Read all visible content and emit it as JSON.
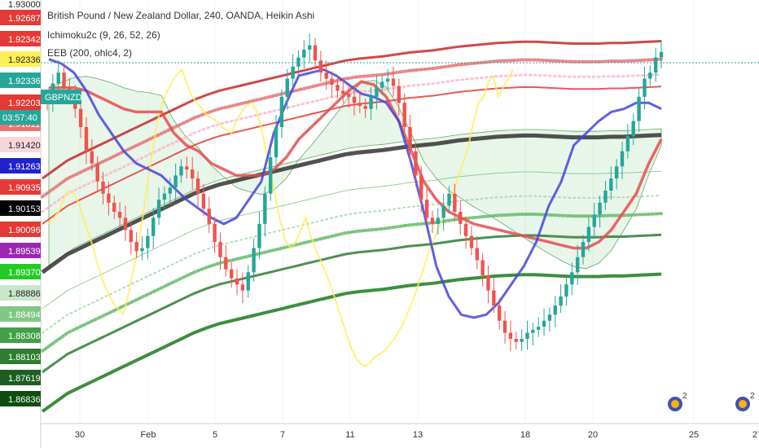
{
  "header": {
    "title": "British Pound / New Zealand Dollar, 240, OANDA, Heikin Ashi",
    "indicator1": "Ichimoku2c (9, 26, 52, 26)",
    "indicator2": "EEB (200, ohlc4, 2)"
  },
  "symbol_badge": "GBPNZD",
  "countdown": "03:57:40",
  "colors": {
    "up": "#26a69a",
    "down": "#ef5350",
    "tenkan": "#4444dd",
    "kijun": "#e84c4c",
    "chikou": "#ffee58",
    "cloud": "#a5d6a7",
    "basis": "#333333"
  },
  "chart_data": {
    "type": "candlestick",
    "x_ticks": [
      "30",
      "Feb",
      "5",
      "7",
      "11",
      "13",
      "18",
      "20",
      "25",
      "27"
    ],
    "price_labels": [
      {
        "value": "1.93000",
        "bg": "#ffffff",
        "fg": "#333333"
      },
      {
        "value": "1.92687",
        "bg": "#e53935",
        "fg": "#ffffff"
      },
      {
        "value": "1.92342",
        "bg": "#e53935",
        "fg": "#ffffff"
      },
      {
        "value": "1.92336",
        "bg": "#ffee58",
        "fg": "#222222"
      },
      {
        "value": "1.92336",
        "bg": "#26a69a",
        "fg": "#ffffff"
      },
      {
        "value": "1.92203",
        "bg": "#e53935",
        "fg": "#ffffff"
      },
      {
        "value": "1.91811",
        "bg": "#e57373",
        "fg": "#ffffff"
      },
      {
        "value": "1.91420",
        "bg": "#f8d7da",
        "fg": "#222222"
      },
      {
        "value": "1.91263",
        "bg": "#2222cc",
        "fg": "#ffffff"
      },
      {
        "value": "1.90935",
        "bg": "#e53935",
        "fg": "#ffffff"
      },
      {
        "value": "1.90153",
        "bg": "#000000",
        "fg": "#ffffff"
      },
      {
        "value": "1.90096",
        "bg": "#e53935",
        "fg": "#ffffff"
      },
      {
        "value": "1.89539",
        "bg": "#9c27b0",
        "fg": "#ffffff"
      },
      {
        "value": "1.89370",
        "bg": "#22cc22",
        "fg": "#ffffff"
      },
      {
        "value": "1.88886",
        "bg": "#c8e6c9",
        "fg": "#222222"
      },
      {
        "value": "1.88494",
        "bg": "#81c784",
        "fg": "#ffffff"
      },
      {
        "value": "1.88308",
        "bg": "#43a047",
        "fg": "#ffffff"
      },
      {
        "value": "1.88103",
        "bg": "#2e7d32",
        "fg": "#ffffff"
      },
      {
        "value": "1.87619",
        "bg": "#1b5e20",
        "fg": "#ffffff"
      },
      {
        "value": "1.86836",
        "bg": "#0d4d0d",
        "fg": "#ffffff"
      }
    ],
    "candles_close": [
      1.915,
      1.9182,
      1.92,
      1.9175,
      1.916,
      1.914,
      1.911,
      1.907,
      1.905,
      1.902,
      1.9,
      1.8985,
      1.897,
      1.896,
      1.894,
      1.892,
      1.8905,
      1.891,
      1.893,
      1.896,
      1.899,
      1.9,
      1.901,
      1.903,
      1.9045,
      1.904,
      1.9025,
      1.9,
      1.8975,
      1.895,
      1.892,
      1.8895,
      1.8875,
      1.886,
      1.885,
      1.884,
      1.887,
      1.891,
      1.895,
      1.9,
      1.906,
      1.911,
      1.916,
      1.919,
      1.921,
      1.9225,
      1.9238,
      1.9245,
      1.922,
      1.92,
      1.919,
      1.918,
      1.917,
      1.9165,
      1.916,
      1.915,
      1.9145,
      1.914,
      1.916,
      1.9175,
      1.9185,
      1.919,
      1.9178,
      1.915,
      1.911,
      1.907,
      1.903,
      1.899,
      1.896,
      1.895,
      1.896,
      1.898,
      1.9,
      1.897,
      1.895,
      1.893,
      1.891,
      1.889,
      1.8865,
      1.884,
      1.8815,
      1.879,
      1.877,
      1.876,
      1.8755,
      1.876,
      1.877,
      1.8775,
      1.878,
      1.879,
      1.88,
      1.8815,
      1.883,
      1.885,
      1.887,
      1.8895,
      1.892,
      1.8945,
      1.8965,
      1.8985,
      1.9005,
      1.9025,
      1.9045,
      1.907,
      1.9095,
      1.912,
      1.916,
      1.919,
      1.92,
      1.9225,
      1.9234
    ],
    "tenkan": [
      1.9222,
      1.9215,
      1.92,
      1.917,
      1.913,
      1.91,
      1.907,
      1.905,
      1.904,
      1.903,
      1.901,
      1.899,
      1.8975,
      1.896,
      1.895,
      1.896,
      1.899,
      1.902,
      1.91,
      1.915,
      1.9195,
      1.92,
      1.9205,
      1.9195,
      1.918,
      1.9165,
      1.916,
      1.915,
      1.912,
      1.905,
      1.897,
      1.888,
      1.883,
      1.88,
      1.8795,
      1.88,
      1.882,
      1.885,
      1.888,
      1.892,
      1.898,
      1.902,
      1.908,
      1.91,
      1.912,
      1.9135,
      1.914,
      1.915,
      1.915,
      1.914
    ],
    "kijun": [
      1.9175,
      1.9175,
      1.9175,
      1.917,
      1.916,
      1.915,
      1.914,
      1.9135,
      1.9135,
      1.9135,
      1.91,
      1.908,
      1.907,
      1.905,
      1.904,
      1.903,
      1.903,
      1.903,
      1.904,
      1.906,
      1.909,
      1.911,
      1.913,
      1.915,
      1.917,
      1.9185,
      1.918,
      1.916,
      1.912,
      1.907,
      1.902,
      1.899,
      1.897,
      1.896,
      1.895,
      1.8945,
      1.894,
      1.8935,
      1.893,
      1.8925,
      1.892,
      1.8915,
      1.891,
      1.891,
      1.892,
      1.894,
      1.897,
      1.9,
      1.905,
      1.909
    ],
    "basis": [
      1.887,
      1.8885,
      1.89,
      1.891,
      1.892,
      1.893,
      1.894,
      1.895,
      1.896,
      1.897,
      1.898,
      1.899,
      1.9,
      1.9008,
      1.9015,
      1.902,
      1.9025,
      1.903,
      1.9035,
      1.904,
      1.9045,
      1.905,
      1.9055,
      1.906,
      1.9065,
      1.9068,
      1.907,
      1.9072,
      1.9075,
      1.9078,
      1.908,
      1.9082,
      1.9085,
      1.9088,
      1.909,
      1.9092,
      1.9094,
      1.9095,
      1.9096,
      1.9096,
      1.9095,
      1.9094,
      1.9093,
      1.9093,
      1.9093,
      1.9094,
      1.9094,
      1.9095,
      1.9096,
      1.9097
    ],
    "y_range": [
      1.862,
      1.932
    ]
  }
}
